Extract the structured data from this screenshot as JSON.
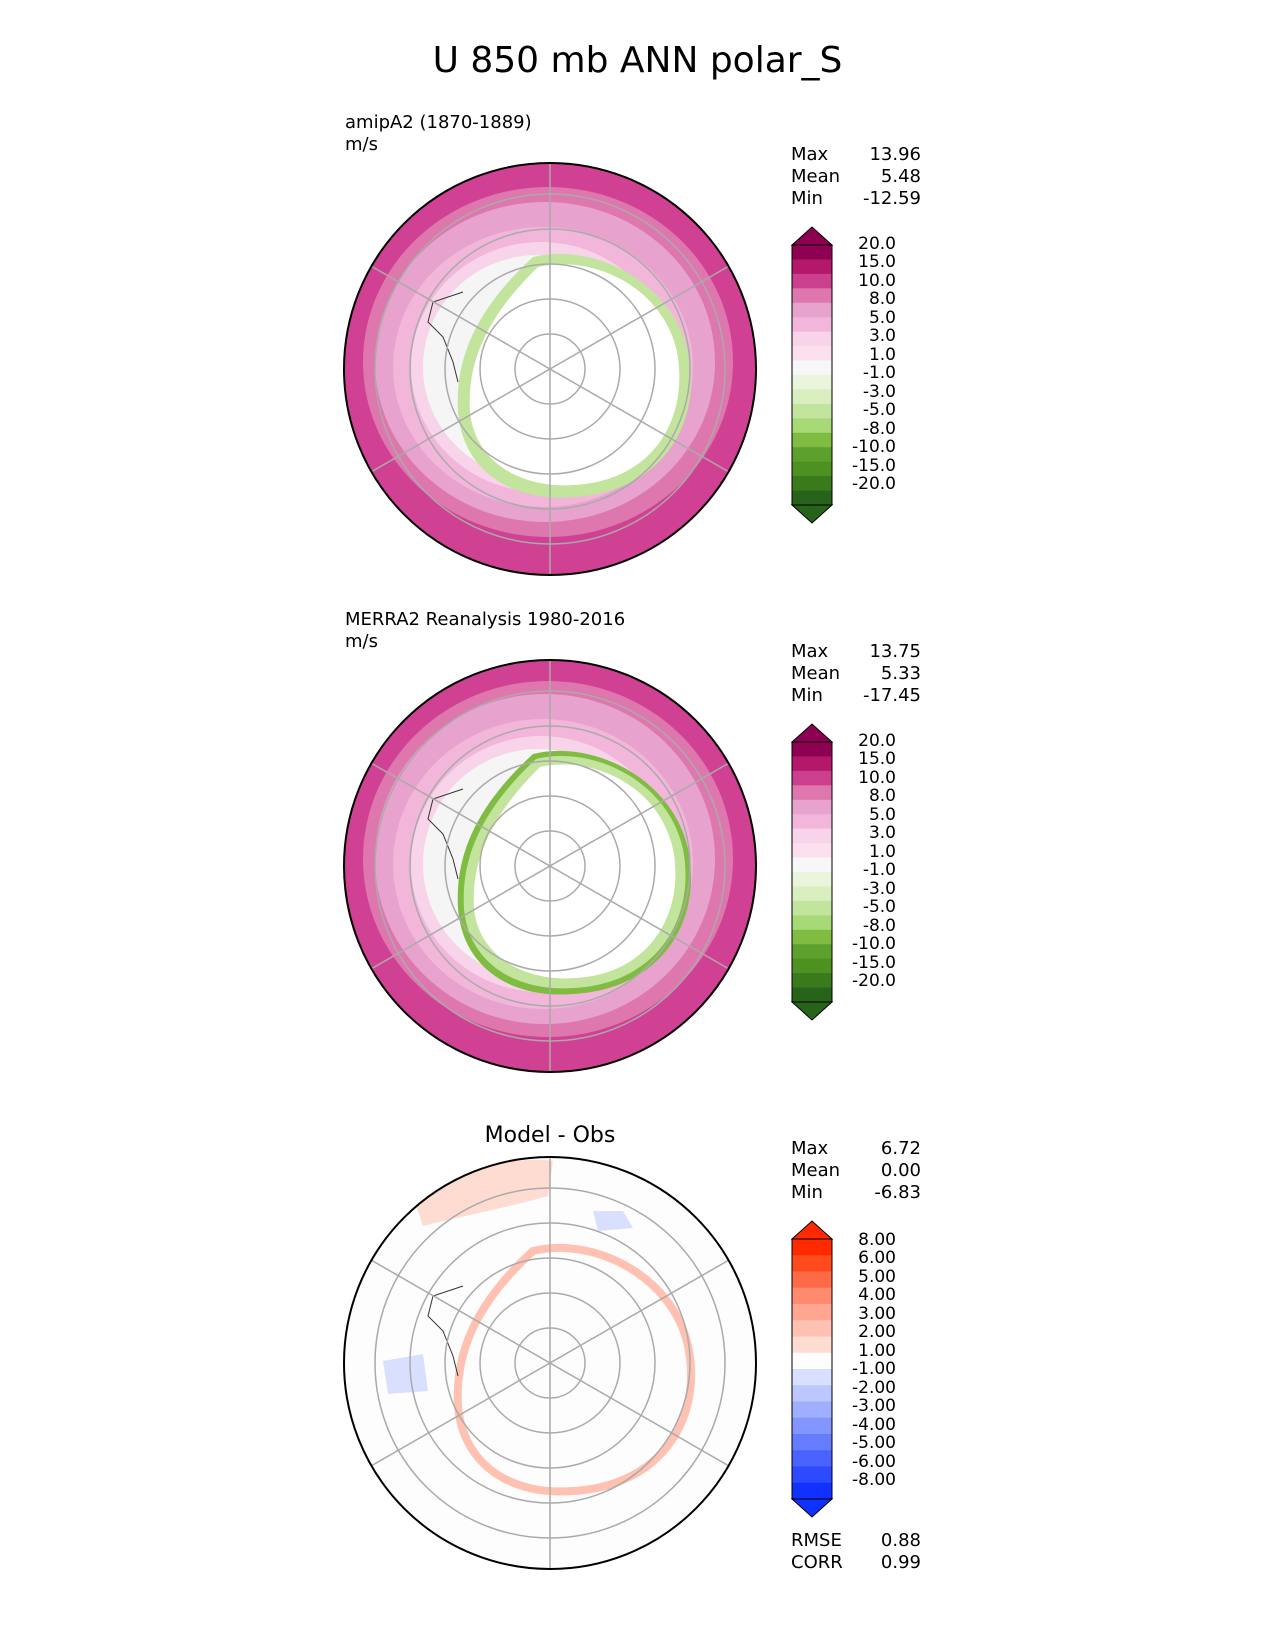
{
  "title": "U 850 mb ANN polar_S",
  "panels": [
    {
      "label_line1": "amipA2 (1870-1889)",
      "label_line2": "m/s",
      "stats": {
        "max_label": "Max",
        "max": "13.96",
        "mean_label": "Mean",
        "mean": "5.48",
        "min_label": "Min",
        "min": "-12.59"
      }
    },
    {
      "label_line1": "MERRA2 Reanalysis 1980-2016",
      "label_line2": "m/s",
      "stats": {
        "max_label": "Max",
        "max": "13.75",
        "mean_label": "Mean",
        "mean": "5.33",
        "min_label": "Min",
        "min": "-17.45"
      }
    },
    {
      "title": "Model - Obs",
      "stats": {
        "max_label": "Max",
        "max": "6.72",
        "mean_label": "Mean",
        "mean": "0.00",
        "min_label": "Min",
        "min": "-6.83"
      },
      "rmse_label": "RMSE",
      "rmse": "0.88",
      "corr_label": "CORR",
      "corr": "0.99"
    }
  ],
  "colorbar_main": {
    "labels": [
      "20.0",
      "15.0",
      "10.0",
      "8.0",
      "5.0",
      "3.0",
      "1.0",
      "-1.0",
      "-3.0",
      "-5.0",
      "-8.0",
      "-10.0",
      "-15.0",
      "-20.0"
    ],
    "colors": [
      "#8e0152",
      "#b3186b",
      "#cc3f8e",
      "#de77ae",
      "#e7a3cd",
      "#f1b6da",
      "#f7d4e9",
      "#fde0ef",
      "#f7f7f7",
      "#eaf5dc",
      "#d9efc0",
      "#c2e49c",
      "#a8d977",
      "#7fbc41",
      "#5da02e",
      "#4d9221",
      "#3a7a1b",
      "#276419"
    ]
  },
  "colorbar_diff": {
    "labels": [
      "8.00",
      "6.00",
      "5.00",
      "4.00",
      "3.00",
      "2.00",
      "1.00",
      "-1.00",
      "-2.00",
      "-3.00",
      "-4.00",
      "-5.00",
      "-6.00",
      "-8.00"
    ],
    "colors": [
      "#ff2a00",
      "#ff4a1e",
      "#ff6a46",
      "#ff8a6e",
      "#ffa691",
      "#ffc1b1",
      "#ffdcd1",
      "#fdfdfd",
      "#d9e0ff",
      "#bcc7ff",
      "#a0aeff",
      "#8395ff",
      "#667cff",
      "#4a63ff",
      "#2d4aff",
      "#1131ff"
    ]
  }
}
